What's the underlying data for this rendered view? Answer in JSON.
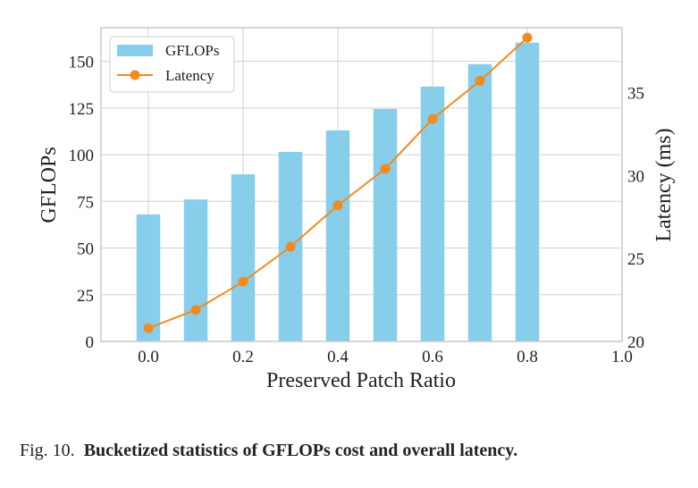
{
  "chart_data": {
    "type": "bar+line",
    "x_ticks": [
      "0.0",
      "0.2",
      "0.4",
      "0.6",
      "0.8",
      "1.0"
    ],
    "xlabel": "Preserved Patch Ratio",
    "xlim": [
      -0.1,
      1.0
    ],
    "ylabel_left": "GFLOPs",
    "ylabel_right": "Latency (ms)",
    "ylim_left": [
      0,
      168
    ],
    "ylim_right": [
      20,
      38.9
    ],
    "y_ticks_left": [
      "0",
      "25",
      "50",
      "75",
      "100",
      "125",
      "150"
    ],
    "y_ticks_right": [
      "20",
      "25",
      "30",
      "35"
    ],
    "grid": true,
    "legend": "top-left",
    "series": [
      {
        "name": "GFLOPs",
        "kind": "bar",
        "axis": "left",
        "color": "#87ceeb",
        "x": [
          0.0,
          0.1,
          0.2,
          0.3,
          0.4,
          0.5,
          0.6,
          0.7,
          0.8
        ],
        "values": [
          68,
          76,
          89.5,
          101.5,
          113,
          124.5,
          136.5,
          148.5,
          160
        ]
      },
      {
        "name": "Latency",
        "kind": "line",
        "axis": "right",
        "color": "#f28a1e",
        "x": [
          0.0,
          0.1,
          0.2,
          0.3,
          0.4,
          0.5,
          0.6,
          0.7,
          0.8
        ],
        "values": [
          20.8,
          21.9,
          23.6,
          25.7,
          28.2,
          30.4,
          33.4,
          35.7,
          38.3
        ]
      }
    ]
  },
  "caption": {
    "prefix": "Fig. 10.",
    "text": "Bucketized statistics of GFLOPs cost and overall latency."
  }
}
